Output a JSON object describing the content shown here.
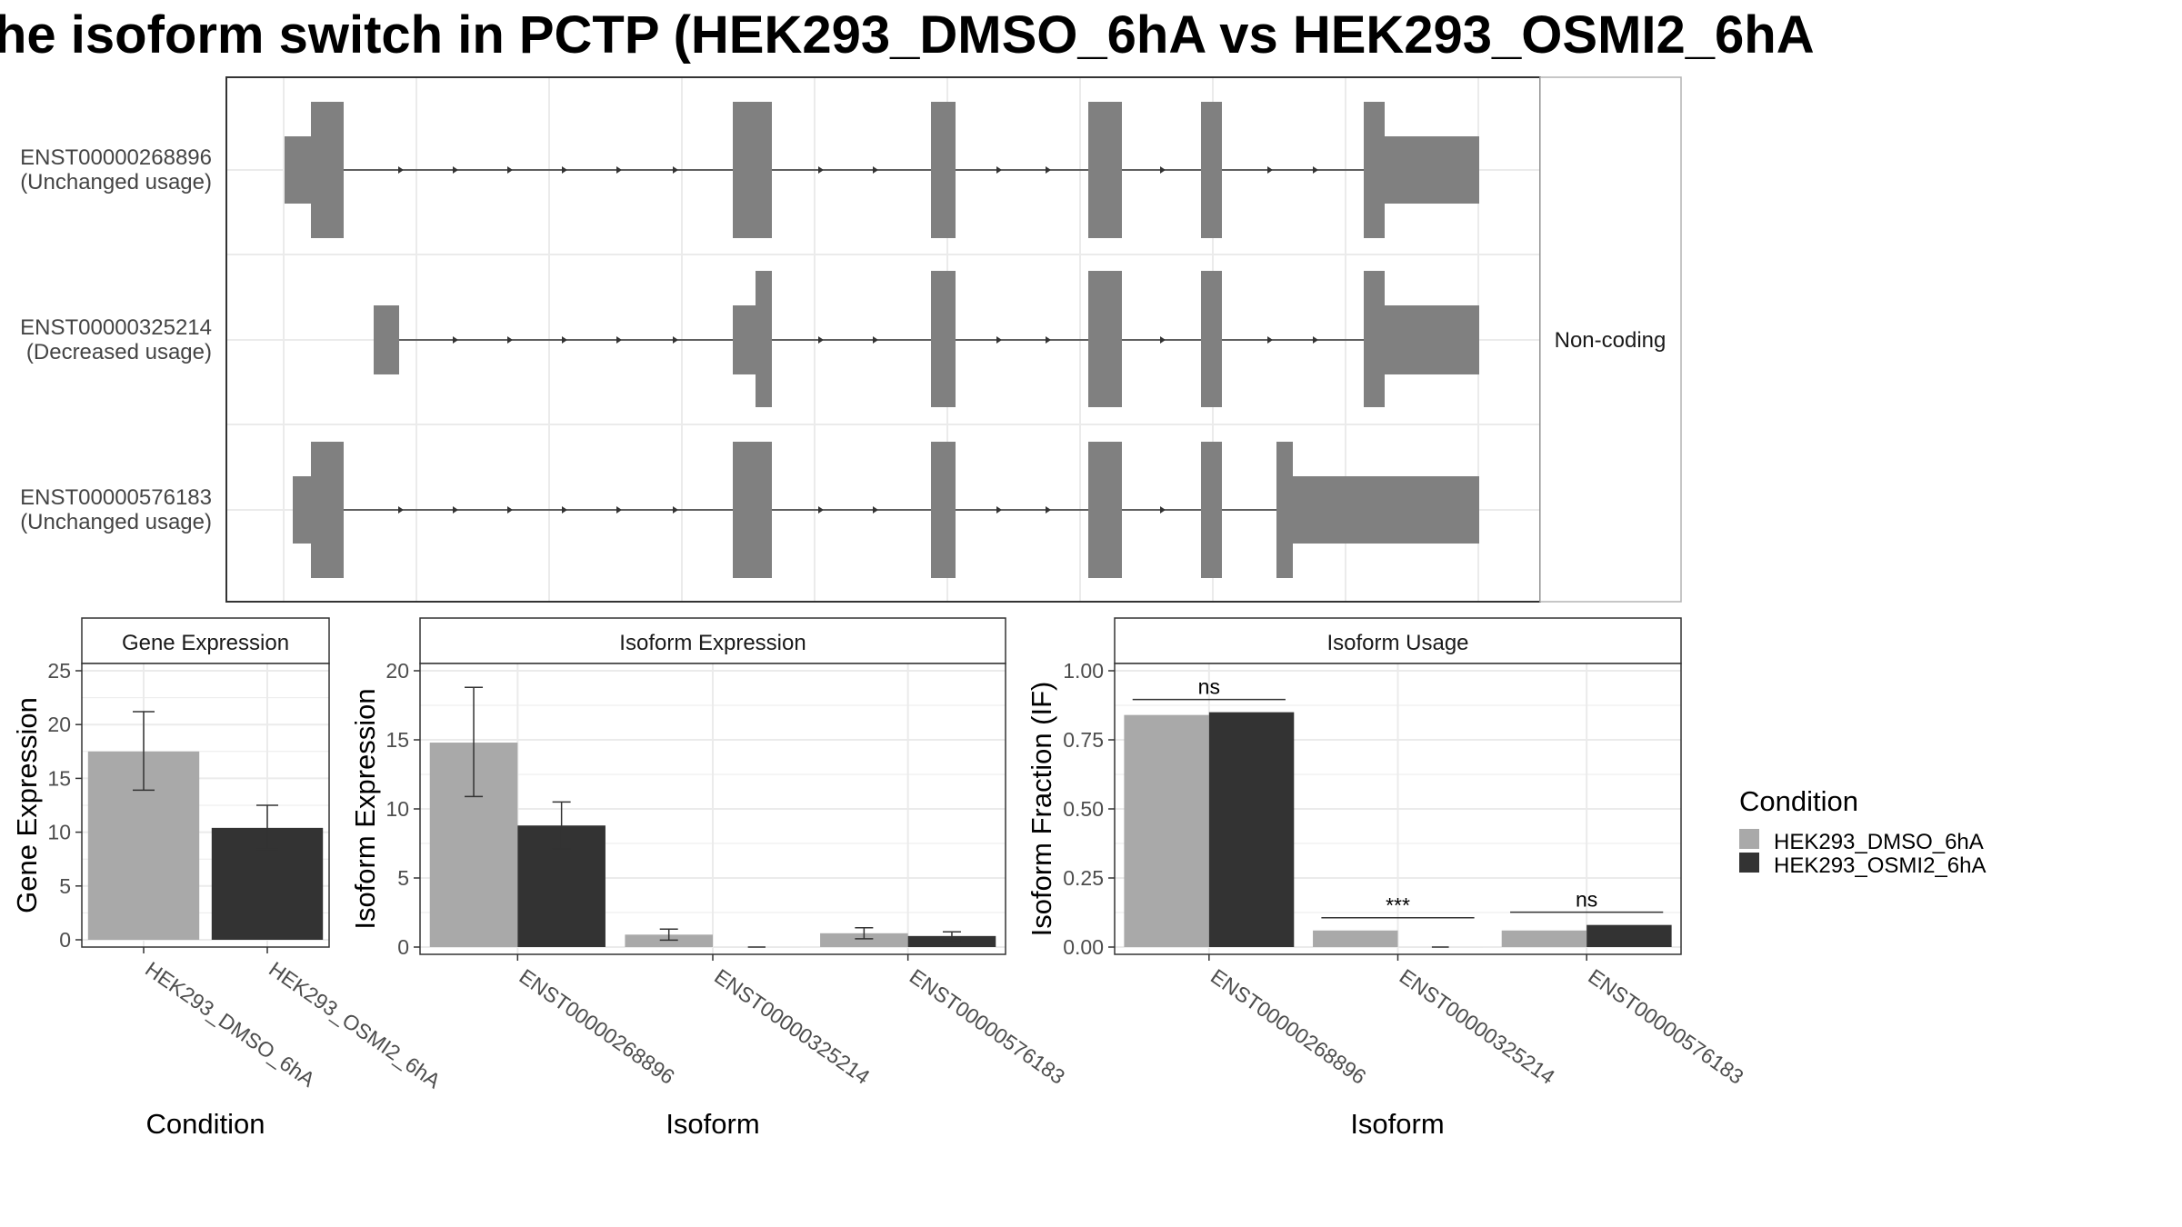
{
  "title": "he isoform switch in PCTP (HEK293_DMSO_6hA vs HEK293_OSMI2_6hA",
  "colors": {
    "dmso": "#a9a9a9",
    "osmi": "#333333",
    "exon": "#808080",
    "grid": "#ebebeb",
    "border": "#333333"
  },
  "transcript_panel": {
    "side_label": "Non-coding",
    "transcripts": [
      {
        "id": "ENST00000268896",
        "usage": "(Unchanged usage)"
      },
      {
        "id": "ENST00000325214",
        "usage": "(Decreased usage)"
      },
      {
        "id": "ENST00000576183",
        "usage": "(Unchanged usage)"
      }
    ]
  },
  "legend": {
    "title": "Condition",
    "items": [
      "HEK293_DMSO_6hA",
      "HEK293_OSMI2_6hA"
    ]
  },
  "chart_data": [
    {
      "type": "bar",
      "strip": "Gene Expression",
      "xlabel": "Condition",
      "ylabel": "Gene Expression",
      "ylim": [
        0,
        25
      ],
      "yticks": [
        "0",
        "5",
        "10",
        "15",
        "20",
        "25"
      ],
      "categories": [
        "HEK293_DMSO_6hA",
        "HEK293_OSMI2_6hA"
      ],
      "values": [
        17.5,
        10.4
      ],
      "errors": [
        [
          13.9,
          21.2
        ],
        [
          8.4,
          12.5
        ]
      ]
    },
    {
      "type": "bar",
      "strip": "Isoform Expression",
      "xlabel": "Isoform",
      "ylabel": "Isoform Expression",
      "ylim": [
        0,
        20
      ],
      "yticks": [
        "0",
        "5",
        "10",
        "15",
        "20"
      ],
      "categories": [
        "ENST00000268896",
        "ENST00000325214",
        "ENST00000576183"
      ],
      "series": [
        {
          "values": [
            14.8,
            0.9,
            1.0
          ],
          "errors": [
            [
              10.9,
              18.8
            ],
            [
              0.5,
              1.3
            ],
            [
              0.6,
              1.4
            ]
          ]
        },
        {
          "values": [
            8.8,
            0.0,
            0.8
          ],
          "errors": [
            [
              7.1,
              10.5
            ],
            [
              0.0,
              0.0
            ],
            [
              0.5,
              1.1
            ]
          ]
        }
      ]
    },
    {
      "type": "bar",
      "strip": "Isoform Usage",
      "xlabel": "Isoform",
      "ylabel": "Isoform Fraction (IF)",
      "ylim": [
        0,
        1.0
      ],
      "yticks": [
        "0.00",
        "0.25",
        "0.50",
        "0.75",
        "1.00"
      ],
      "categories": [
        "ENST00000268896",
        "ENST00000325214",
        "ENST00000576183"
      ],
      "series": [
        {
          "values": [
            0.84,
            0.06,
            0.06
          ]
        },
        {
          "values": [
            0.85,
            0.0,
            0.08
          ]
        }
      ],
      "significance": [
        "ns",
        "***",
        "ns"
      ]
    }
  ]
}
